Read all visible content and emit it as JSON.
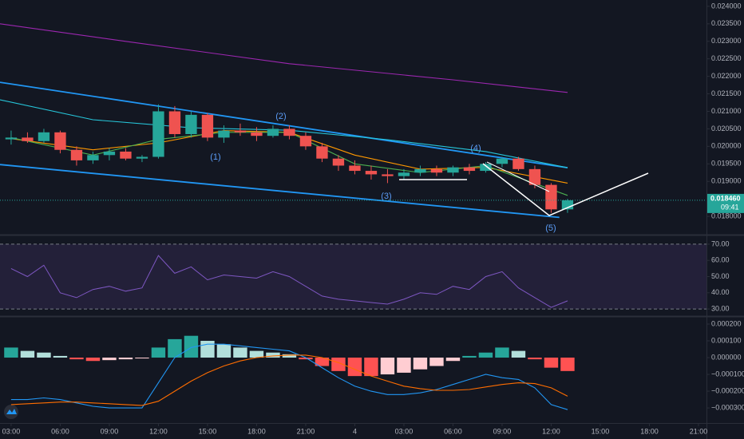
{
  "chart_data": [
    {
      "type": "candlestick",
      "x": [
        3,
        4,
        5,
        6,
        7,
        8,
        9,
        10,
        11,
        12,
        13,
        14,
        15,
        16,
        17,
        18,
        19,
        20,
        21,
        22,
        23,
        24,
        25,
        26,
        27,
        28,
        29,
        30,
        31,
        32,
        33,
        34,
        35,
        36,
        37
      ],
      "open": [
        0.0202,
        0.02025,
        0.02015,
        0.0204,
        0.0199,
        0.0196,
        0.01975,
        0.01985,
        0.01965,
        0.0197,
        0.021,
        0.02035,
        0.0209,
        0.02025,
        0.02045,
        0.0204,
        0.0203,
        0.0205,
        0.0203,
        0.02,
        0.01965,
        0.01945,
        0.0193,
        0.0192,
        0.01915,
        0.01925,
        0.01935,
        0.01925,
        0.0194,
        0.0193,
        0.0195,
        0.01965,
        0.01935,
        0.0189,
        0.0182
      ],
      "high": [
        0.02045,
        0.0204,
        0.0205,
        0.02045,
        0.02,
        0.01985,
        0.01995,
        0.01995,
        0.01975,
        0.0212,
        0.02115,
        0.021,
        0.02095,
        0.0206,
        0.02065,
        0.02055,
        0.0206,
        0.0206,
        0.0204,
        0.0201,
        0.01975,
        0.0196,
        0.01945,
        0.01935,
        0.01935,
        0.01945,
        0.01945,
        0.01945,
        0.0195,
        0.01955,
        0.0197,
        0.0197,
        0.01945,
        0.01895,
        0.0185
      ],
      "low": [
        0.02005,
        0.0201,
        0.0201,
        0.0198,
        0.01945,
        0.0195,
        0.0196,
        0.0196,
        0.01955,
        0.01965,
        0.02025,
        0.02025,
        0.02015,
        0.0201,
        0.0203,
        0.02015,
        0.02025,
        0.0202,
        0.0199,
        0.01955,
        0.0193,
        0.0192,
        0.01905,
        0.01895,
        0.01905,
        0.01915,
        0.01915,
        0.01915,
        0.0192,
        0.01925,
        0.0194,
        0.0193,
        0.0188,
        0.0181,
        0.0181
      ],
      "close": [
        0.02025,
        0.02015,
        0.0204,
        0.0199,
        0.0196,
        0.01975,
        0.01985,
        0.01965,
        0.0197,
        0.021,
        0.02035,
        0.0209,
        0.02025,
        0.02045,
        0.0204,
        0.0203,
        0.0205,
        0.0203,
        0.02,
        0.01965,
        0.01945,
        0.0193,
        0.0192,
        0.01915,
        0.01925,
        0.01935,
        0.01925,
        0.0194,
        0.0193,
        0.0195,
        0.01965,
        0.01935,
        0.0189,
        0.0182,
        0.01846
      ],
      "up_color": "#26a69a",
      "down_color": "#ef5350",
      "overlays": [
        {
          "color": "#9c27b0",
          "x": [
            2.32,
            10,
            20,
            30,
            37
          ],
          "values": [
            0.0235,
            0.023,
            0.02236,
            0.0219,
            0.02154
          ]
        },
        {
          "color": "#2196f3",
          "x": [
            2.32,
            37
          ],
          "values": [
            0.02183,
            0.01939
          ]
        },
        {
          "color": "#2196f3",
          "x": [
            2.32,
            36.5
          ],
          "values": [
            0.01948,
            0.01797
          ]
        },
        {
          "color": "#26c6da",
          "x": [
            2.32,
            8,
            14,
            20,
            26,
            32,
            37
          ],
          "values": [
            0.02133,
            0.02076,
            0.02053,
            0.02046,
            0.02019,
            0.01985,
            0.01939
          ]
        },
        {
          "color": "#ff9800",
          "x": [
            3,
            8,
            12,
            16,
            20,
            24,
            28,
            32,
            37
          ],
          "values": [
            0.02022,
            0.0199,
            0.0201,
            0.02045,
            0.0204,
            0.01975,
            0.01935,
            0.0194,
            0.01895
          ]
        },
        {
          "color": "#4caf50",
          "x": [
            3,
            8,
            12,
            16,
            20,
            24,
            28,
            32,
            37
          ],
          "values": [
            0.02025,
            0.01975,
            0.0202,
            0.0204,
            0.0204,
            0.0195,
            0.01925,
            0.01945,
            0.0186
          ]
        }
      ],
      "annotations": [
        "(1)",
        "(2)",
        "(3)",
        "(4)",
        "(5)"
      ],
      "current_price": 0.01846,
      "current_price_label": "0.018460",
      "countdown": "09:41",
      "xlim": [
        2.32,
        45.49
      ],
      "ylim": [
        0.0175,
        0.02418
      ],
      "yticks": [
        {
          "value": 0.0175,
          "label": "0.017500"
        },
        {
          "value": 0.018,
          "label": "0.018000"
        },
        {
          "value": 0.019,
          "label": "0.019000"
        },
        {
          "value": 0.0195,
          "label": "0.019500"
        },
        {
          "value": 0.02,
          "label": "0.020000"
        },
        {
          "value": 0.0205,
          "label": "0.020500"
        },
        {
          "value": 0.021,
          "label": "0.021000"
        },
        {
          "value": 0.0215,
          "label": "0.021500"
        },
        {
          "value": 0.022,
          "label": "0.022000"
        },
        {
          "value": 0.0225,
          "label": "0.022500"
        },
        {
          "value": 0.023,
          "label": "0.023000"
        },
        {
          "value": 0.0235,
          "label": "0.023500"
        },
        {
          "value": 0.024,
          "label": "0.024000"
        }
      ]
    },
    {
      "type": "line",
      "x": [
        3,
        4,
        5,
        6,
        7,
        8,
        9,
        10,
        11,
        12,
        13,
        14,
        15,
        16,
        17,
        18,
        19,
        20,
        21,
        22,
        23,
        24,
        25,
        26,
        27,
        28,
        29,
        30,
        31,
        32,
        33,
        34,
        35,
        36,
        37
      ],
      "values": [
        55,
        50,
        57,
        40,
        37,
        42,
        44,
        41,
        43,
        63,
        52,
        56,
        48,
        51,
        50,
        49,
        53,
        50,
        44,
        38,
        36,
        35,
        34,
        33,
        36,
        40,
        39,
        44,
        42,
        50,
        53,
        43,
        37,
        31,
        35
      ],
      "color": "#7e57c2",
      "band": [
        30,
        70
      ],
      "band_color": "#7e57c2",
      "xlim": [
        2.32,
        45.49
      ],
      "ylim": [
        26.1,
        74.4
      ],
      "yticks": [
        {
          "value": 30,
          "label": "30.00"
        },
        {
          "value": 40,
          "label": "40.00"
        },
        {
          "value": 50,
          "label": "50.00"
        },
        {
          "value": 60,
          "label": "60.00"
        },
        {
          "value": 70,
          "label": "70.00"
        }
      ]
    },
    {
      "type": "macd",
      "x": [
        3,
        4,
        5,
        6,
        7,
        8,
        9,
        10,
        11,
        12,
        13,
        14,
        15,
        16,
        17,
        18,
        19,
        20,
        21,
        22,
        23,
        24,
        25,
        26,
        27,
        28,
        29,
        30,
        31,
        32,
        33,
        34,
        35,
        36,
        37
      ],
      "histogram": [
        6e-05,
        4e-05,
        3e-05,
        1e-05,
        -1e-05,
        -2e-05,
        -1.5e-05,
        -1e-05,
        -5e-06,
        6e-05,
        0.00011,
        0.00013,
        0.0001,
        8e-05,
        6e-05,
        4e-05,
        3e-05,
        2e-05,
        -1e-05,
        -5e-05,
        -8e-05,
        -0.00011,
        -0.00011,
        -0.0001,
        -9e-05,
        -7e-05,
        -5e-05,
        -2e-05,
        1e-05,
        3e-05,
        6e-05,
        4e-05,
        -1e-05,
        -6e-05,
        -8e-05
      ],
      "macd": [
        -0.00025,
        -0.00025,
        -0.00024,
        -0.00025,
        -0.00027,
        -0.00029,
        -0.0003,
        -0.0003,
        -0.0003,
        -0.00015,
        0,
        6e-05,
        8e-05,
        8e-05,
        7e-05,
        6e-05,
        5e-05,
        4e-05,
        0,
        -6e-05,
        -0.00012,
        -0.00017,
        -0.0002,
        -0.00022,
        -0.00022,
        -0.00021,
        -0.00019,
        -0.00016,
        -0.00013,
        -0.0001,
        -0.00012,
        -0.00013,
        -0.00018,
        -0.00028,
        -0.00031
      ],
      "signal": [
        -0.00028,
        -0.000275,
        -0.00027,
        -0.000265,
        -0.000265,
        -0.00027,
        -0.000275,
        -0.00028,
        -0.000285,
        -0.00026,
        -0.0002,
        -0.00014,
        -9e-05,
        -5e-05,
        -2e-05,
        0,
        1e-05,
        1.5e-05,
        1.5e-05,
        0,
        -3e-05,
        -7e-05,
        -0.00011,
        -0.00014,
        -0.00017,
        -0.000185,
        -0.000195,
        -0.000195,
        -0.00019,
        -0.000175,
        -0.00016,
        -0.00015,
        -0.000155,
        -0.00018,
        -0.00023
      ],
      "macd_color": "#2196f3",
      "signal_color": "#ff6d00",
      "histogram_colors": {
        "pos_up": "#26a69a",
        "pos_down": "#b2dfdb",
        "neg_down": "#ff5252",
        "neg_up": "#ffcdd2"
      },
      "xlim": [
        2.32,
        45.49
      ],
      "ylim": [
        -0.00039,
        0.000238
      ],
      "yticks": [
        {
          "value": 0.0002,
          "label": "0.000200"
        },
        {
          "value": 0.0001,
          "label": "0.000100"
        },
        {
          "value": 0,
          "label": "0.000000"
        },
        {
          "value": -0.0001,
          "label": "−0.000100"
        },
        {
          "value": -0.0002,
          "label": "−0.000200"
        },
        {
          "value": -0.0003,
          "label": "−0.000300"
        }
      ],
      "xticks": [
        {
          "value": 3,
          "label": "03:00"
        },
        {
          "value": 6,
          "label": "06:00"
        },
        {
          "value": 9,
          "label": "09:00"
        },
        {
          "value": 12,
          "label": "12:00"
        },
        {
          "value": 15,
          "label": "15:00"
        },
        {
          "value": 18,
          "label": "18:00"
        },
        {
          "value": 21,
          "label": "21:00"
        },
        {
          "value": 24,
          "label": "4"
        },
        {
          "value": 27,
          "label": "03:00"
        },
        {
          "value": 30,
          "label": "06:00"
        },
        {
          "value": 33,
          "label": "09:00"
        },
        {
          "value": 36,
          "label": "12:00"
        },
        {
          "value": 39,
          "label": "15:00"
        },
        {
          "value": 42,
          "label": "18:00"
        },
        {
          "value": 45,
          "label": "21:00"
        }
      ]
    }
  ]
}
